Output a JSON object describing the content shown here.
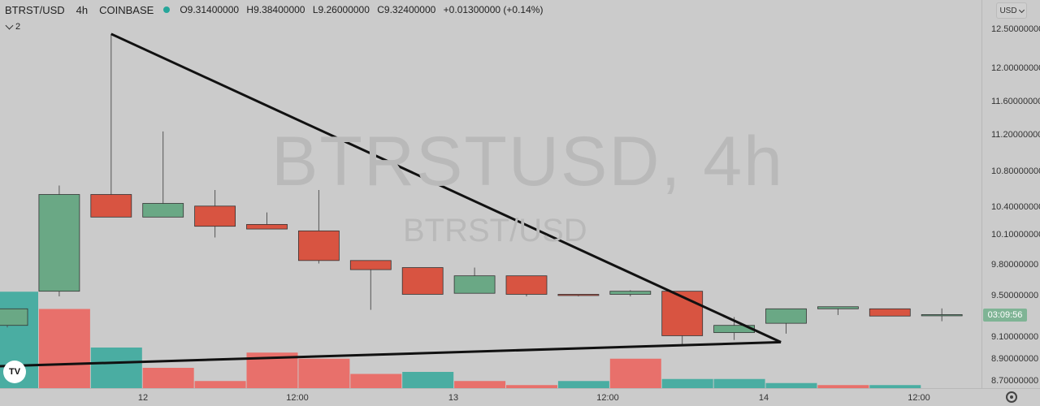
{
  "header": {
    "symbol": "BTRST/USD",
    "timeframe": "4h",
    "exchange": "COINBASE",
    "open": "O9.31400000",
    "high": "H9.38400000",
    "low": "L9.26000000",
    "close": "C9.32400000",
    "change": "+0.01300000 (+0.14%)",
    "indicator_count": "2"
  },
  "watermark": {
    "symbol": "BTRSTUSD, 4h",
    "pair": "BTRST/USD"
  },
  "price_axis": {
    "currency": "USD",
    "countdown": "03:09:56",
    "labels": [
      "12.50000000",
      "12.00000000",
      "11.60000000",
      "11.20000000",
      "10.80000000",
      "10.40000000",
      "10.10000000",
      "9.80000000",
      "9.50000000",
      "9.10000000",
      "8.90000000",
      "8.70000000"
    ]
  },
  "time_axis": {
    "labels": [
      "12",
      "12:00",
      "13",
      "12:00",
      "14",
      "12:00"
    ]
  },
  "colors": {
    "up": "#6aa885",
    "down": "#d85441",
    "vol_up": "#4aada2",
    "vol_down": "#e8706b",
    "background": "#cbcbcb"
  },
  "chart_data": {
    "type": "candlestick",
    "candles": [
      {
        "o": 9.22,
        "h": 9.38,
        "l": 9.2,
        "c": 9.38
      },
      {
        "o": 9.55,
        "h": 10.65,
        "l": 9.5,
        "c": 10.55
      },
      {
        "o": 10.55,
        "h": 12.45,
        "l": 10.3,
        "c": 10.3
      },
      {
        "o": 10.3,
        "h": 11.25,
        "l": 10.3,
        "c": 10.45
      },
      {
        "o": 10.42,
        "h": 10.6,
        "l": 10.08,
        "c": 10.2
      },
      {
        "o": 10.22,
        "h": 10.35,
        "l": 10.17,
        "c": 10.17
      },
      {
        "o": 10.15,
        "h": 10.6,
        "l": 9.82,
        "c": 9.85
      },
      {
        "o": 9.85,
        "h": 9.85,
        "l": 9.37,
        "c": 9.76
      },
      {
        "o": 9.78,
        "h": 9.78,
        "l": 9.52,
        "c": 9.52
      },
      {
        "o": 9.53,
        "h": 9.78,
        "l": 9.53,
        "c": 9.7
      },
      {
        "o": 9.7,
        "h": 9.7,
        "l": 9.5,
        "c": 9.52
      },
      {
        "o": 9.52,
        "h": 9.52,
        "l": 9.5,
        "c": 9.51
      },
      {
        "o": 9.52,
        "h": 9.56,
        "l": 9.5,
        "c": 9.55
      },
      {
        "o": 9.55,
        "h": 9.55,
        "l": 9.03,
        "c": 9.12
      },
      {
        "o": 9.15,
        "h": 9.3,
        "l": 9.08,
        "c": 9.22
      },
      {
        "o": 9.24,
        "h": 9.38,
        "l": 9.14,
        "c": 9.38
      },
      {
        "o": 9.38,
        "h": 9.4,
        "l": 9.32,
        "c": 9.4
      },
      {
        "o": 9.38,
        "h": 9.38,
        "l": 9.31,
        "c": 9.31
      },
      {
        "o": 9.314,
        "h": 9.384,
        "l": 9.26,
        "c": 9.324
      }
    ],
    "volumes": [
      {
        "v": 0.95,
        "up": true
      },
      {
        "v": 0.78,
        "up": false
      },
      {
        "v": 0.4,
        "up": true
      },
      {
        "v": 0.2,
        "up": false
      },
      {
        "v": 0.07,
        "up": false
      },
      {
        "v": 0.35,
        "up": false
      },
      {
        "v": 0.29,
        "up": false
      },
      {
        "v": 0.14,
        "up": false
      },
      {
        "v": 0.16,
        "up": true
      },
      {
        "v": 0.07,
        "up": false
      },
      {
        "v": 0.03,
        "up": false
      },
      {
        "v": 0.07,
        "up": true
      },
      {
        "v": 0.29,
        "up": false
      },
      {
        "v": 0.09,
        "up": true
      },
      {
        "v": 0.09,
        "up": true
      },
      {
        "v": 0.05,
        "up": true
      },
      {
        "v": 0.03,
        "up": false
      },
      {
        "v": 0.03,
        "up": true
      }
    ],
    "trendlines": [
      {
        "from": [
          2,
          12.45
        ],
        "to": [
          14.9,
          9.06
        ]
      },
      {
        "from": [
          -0.2,
          8.84
        ],
        "to": [
          14.9,
          9.06
        ]
      }
    ]
  }
}
